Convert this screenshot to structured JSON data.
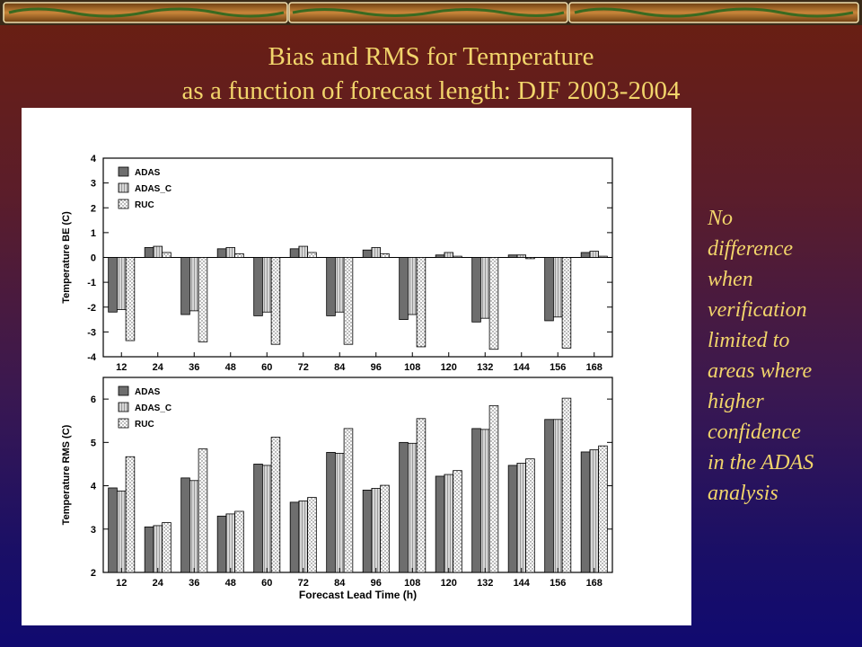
{
  "slide": {
    "title_line1": "Bias and RMS for Temperature",
    "title_line2": "as a function of forecast length: DJF 2003-2004",
    "note_lines": [
      "No",
      "difference",
      "when",
      "verification",
      "limited to",
      "areas where",
      "higher",
      "confidence",
      "in the ADAS",
      "analysis"
    ]
  },
  "chart_data": [
    {
      "type": "bar",
      "ylabel": "Temperature BE (C)",
      "xlabel": "",
      "ylim": [
        -4,
        4
      ],
      "yticks": [
        -4,
        -3,
        -2,
        -1,
        0,
        1,
        2,
        3,
        4
      ],
      "categories": [
        "12",
        "24",
        "36",
        "48",
        "60",
        "72",
        "84",
        "96",
        "108",
        "120",
        "132",
        "144",
        "156",
        "168"
      ],
      "legend_position": "top-left",
      "series": [
        {
          "name": "ADAS",
          "color": "#6e6e6e",
          "values": [
            -2.2,
            0.4,
            -2.3,
            0.35,
            -2.35,
            0.35,
            -2.35,
            0.3,
            -2.5,
            0.1,
            -2.6,
            0.1,
            -2.55,
            0.2
          ]
        },
        {
          "name": "ADAS_C",
          "color": "#bdbdbd",
          "values": [
            -2.1,
            0.45,
            -2.15,
            0.4,
            -2.2,
            0.45,
            -2.2,
            0.4,
            -2.3,
            0.2,
            -2.45,
            0.1,
            -2.4,
            0.25
          ]
        },
        {
          "name": "RUC",
          "color": "#e8e8e8",
          "values": [
            -3.35,
            0.2,
            -3.4,
            0.15,
            -3.5,
            0.2,
            -3.5,
            0.15,
            -3.6,
            0.05,
            -3.7,
            -0.05,
            -3.65,
            0.05
          ]
        }
      ]
    },
    {
      "type": "bar",
      "ylabel": "Temperature RMS (C)",
      "xlabel": "Forecast Lead Time (h)",
      "ylim": [
        2,
        6.5
      ],
      "yticks": [
        2,
        3,
        4,
        5,
        6
      ],
      "categories": [
        "12",
        "24",
        "36",
        "48",
        "60",
        "72",
        "84",
        "96",
        "108",
        "120",
        "132",
        "144",
        "156",
        "168"
      ],
      "legend_position": "top-left",
      "series": [
        {
          "name": "ADAS",
          "color": "#6e6e6e",
          "values": [
            3.95,
            3.05,
            4.18,
            3.3,
            4.5,
            3.62,
            4.77,
            3.9,
            5.0,
            4.22,
            5.32,
            4.47,
            5.53,
            4.78
          ]
        },
        {
          "name": "ADAS_C",
          "color": "#bdbdbd",
          "values": [
            3.88,
            3.08,
            4.12,
            3.35,
            4.47,
            3.65,
            4.75,
            3.94,
            4.98,
            4.26,
            5.3,
            4.52,
            5.53,
            4.83
          ]
        },
        {
          "name": "RUC",
          "color": "#e8e8e8",
          "values": [
            4.67,
            3.15,
            4.85,
            3.41,
            5.12,
            3.73,
            5.32,
            4.01,
            5.55,
            4.35,
            5.85,
            4.62,
            6.02,
            4.92
          ]
        }
      ]
    }
  ]
}
